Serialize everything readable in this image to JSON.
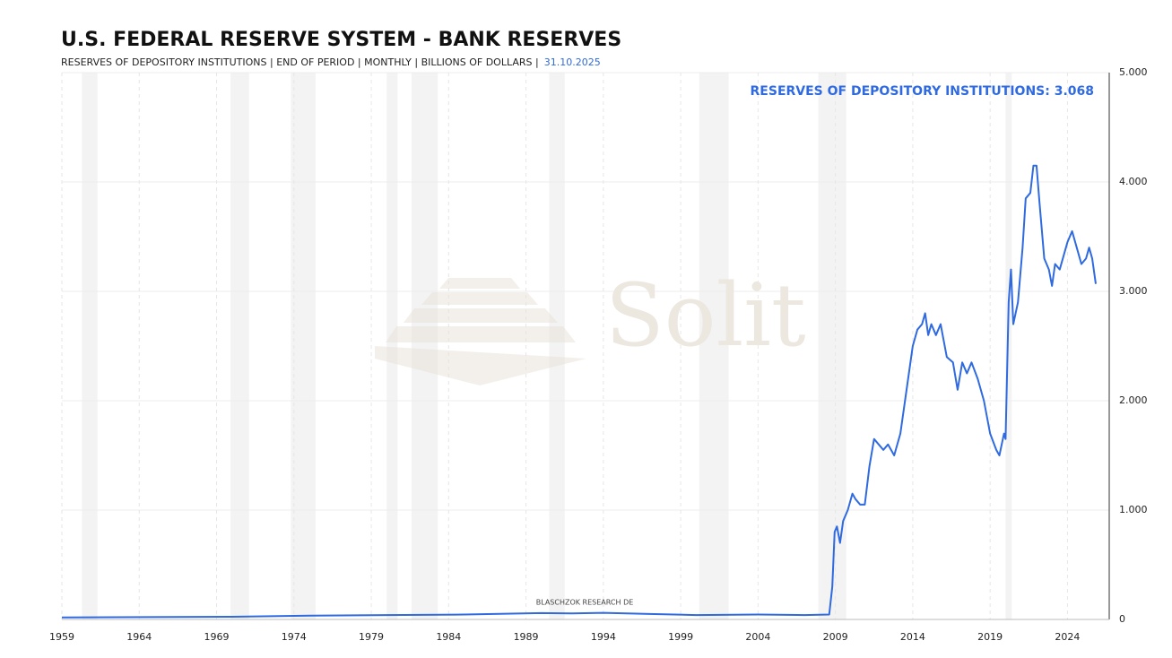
{
  "chart_data": {
    "type": "line",
    "title": "U.S. FEDERAL RESERVE SYSTEM - BANK RESERVES",
    "subtitle": "RESERVES OF DEPOSITORY INSTITUTIONS | END OF PERIOD | MONTHLY | BILLIONS OF DOLLARS |",
    "date": "31.10.2025",
    "annotation": "RESERVES OF DEPOSITORY INSTITUTIONS: 3.068",
    "watermark": "Solit",
    "credit": "BLASCHZOK RESEARCH DE",
    "color": "#2f6ae0",
    "x": [
      1959,
      1970,
      1975,
      1980,
      1985,
      1990,
      1992,
      1994,
      1997,
      2000,
      2004,
      2007,
      2008.6,
      2008.8,
      2008.95,
      2009.1,
      2009.3,
      2009.5,
      2009.8,
      2010.1,
      2010.3,
      2010.6,
      2010.9,
      2011.2,
      2011.5,
      2011.8,
      2012.1,
      2012.4,
      2012.8,
      2013.2,
      2013.6,
      2014.0,
      2014.3,
      2014.6,
      2014.8,
      2015.0,
      2015.2,
      2015.5,
      2015.8,
      2016.2,
      2016.6,
      2016.9,
      2017.2,
      2017.5,
      2017.8,
      2018.2,
      2018.6,
      2019.0,
      2019.4,
      2019.6,
      2019.9,
      2020.0,
      2020.2,
      2020.35,
      2020.5,
      2020.8,
      2021.1,
      2021.3,
      2021.6,
      2021.8,
      2022.0,
      2022.2,
      2022.5,
      2022.8,
      2023.0,
      2023.2,
      2023.5,
      2023.8,
      2024.0,
      2024.3,
      2024.6,
      2024.9,
      2025.2,
      2025.4,
      2025.6,
      2025.83
    ],
    "values": [
      18,
      25,
      35,
      40,
      45,
      58,
      55,
      60,
      50,
      40,
      45,
      40,
      45,
      300,
      800,
      850,
      700,
      900,
      1000,
      1150,
      1100,
      1050,
      1050,
      1400,
      1650,
      1600,
      1550,
      1600,
      1500,
      1700,
      2100,
      2500,
      2650,
      2700,
      2800,
      2600,
      2700,
      2600,
      2700,
      2400,
      2350,
      2100,
      2350,
      2250,
      2350,
      2200,
      2000,
      1700,
      1550,
      1500,
      1700,
      1650,
      2900,
      3200,
      2700,
      2900,
      3400,
      3850,
      3900,
      4150,
      4150,
      3800,
      3300,
      3200,
      3050,
      3250,
      3200,
      3350,
      3450,
      3550,
      3400,
      3250,
      3300,
      3400,
      3300,
      3068
    ],
    "recessions": [
      [
        1960.3,
        1961.3
      ],
      [
        1969.9,
        1971.1
      ],
      [
        1973.8,
        1975.4
      ],
      [
        1980.0,
        1980.7
      ],
      [
        1981.6,
        1983.3
      ],
      [
        1990.5,
        1991.5
      ],
      [
        2000.2,
        2002.1
      ],
      [
        2007.9,
        2009.7
      ],
      [
        2020.0,
        2020.4
      ]
    ],
    "xlim": [
      1959,
      2026.7
    ],
    "xticks": [
      1959,
      1964,
      1969,
      1974,
      1979,
      1984,
      1989,
      1994,
      1999,
      2004,
      2009,
      2014,
      2019,
      2024
    ],
    "ylim": [
      0,
      5000
    ],
    "yticks": [
      0,
      {
        "value": 1000,
        "label": "1.000"
      },
      {
        "value": 2000,
        "label": "2.000"
      },
      {
        "value": 3000,
        "label": "3.000"
      },
      {
        "value": 4000,
        "label": "4.000"
      },
      {
        "value": 5000,
        "label": "5.000"
      }
    ],
    "grid": true
  }
}
